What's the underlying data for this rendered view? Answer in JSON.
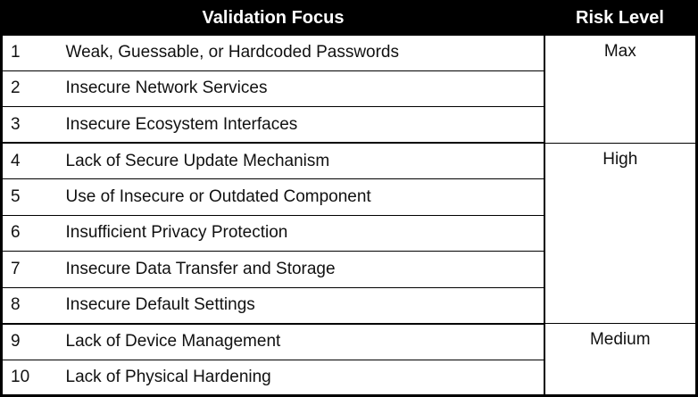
{
  "header": {
    "validation_focus": "Validation Focus",
    "risk_level": "Risk Level"
  },
  "rows": [
    {
      "num": "1",
      "desc": "Weak, Guessable, or Hardcoded Passwords"
    },
    {
      "num": "2",
      "desc": "Insecure Network Services"
    },
    {
      "num": "3",
      "desc": "Insecure Ecosystem Interfaces"
    },
    {
      "num": "4",
      "desc": "Lack of Secure Update Mechanism"
    },
    {
      "num": "5",
      "desc": "Use of Insecure or Outdated Component"
    },
    {
      "num": "6",
      "desc": "Insufficient Privacy Protection"
    },
    {
      "num": "7",
      "desc": "Insecure Data Transfer and Storage"
    },
    {
      "num": "8",
      "desc": "Insecure Default Settings"
    },
    {
      "num": "9",
      "desc": "Lack of Device Management"
    },
    {
      "num": "10",
      "desc": "Lack of Physical Hardening"
    }
  ],
  "risk_groups": [
    {
      "label": "Max",
      "rowspan": 3
    },
    {
      "label": "High",
      "rowspan": 5
    },
    {
      "label": "Medium",
      "rowspan": 2
    }
  ],
  "colors": {
    "header_bg": "#000000",
    "header_text": "#ffffff",
    "border": "#000000",
    "body_bg": "#ffffff",
    "body_text": "#111111"
  }
}
